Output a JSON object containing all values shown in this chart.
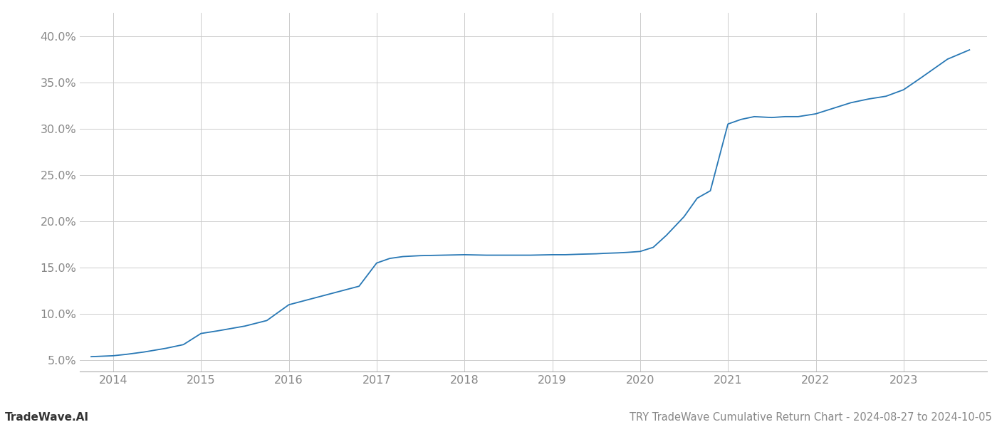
{
  "x_values": [
    2013.75,
    2014.0,
    2014.15,
    2014.35,
    2014.6,
    2014.8,
    2015.0,
    2015.2,
    2015.5,
    2015.75,
    2016.0,
    2016.2,
    2016.4,
    2016.6,
    2016.8,
    2017.0,
    2017.15,
    2017.3,
    2017.5,
    2017.75,
    2018.0,
    2018.25,
    2018.5,
    2018.75,
    2019.0,
    2019.15,
    2019.3,
    2019.5,
    2019.6,
    2019.75,
    2019.85,
    2020.0,
    2020.15,
    2020.3,
    2020.5,
    2020.65,
    2020.8,
    2021.0,
    2021.15,
    2021.3,
    2021.5,
    2021.65,
    2021.8,
    2022.0,
    2022.2,
    2022.4,
    2022.6,
    2022.8,
    2023.0,
    2023.2,
    2023.5,
    2023.75
  ],
  "y_values": [
    5.4,
    5.5,
    5.65,
    5.9,
    6.3,
    6.7,
    7.9,
    8.2,
    8.7,
    9.3,
    11.0,
    11.5,
    12.0,
    12.5,
    13.0,
    15.5,
    16.0,
    16.2,
    16.3,
    16.35,
    16.4,
    16.35,
    16.35,
    16.35,
    16.4,
    16.4,
    16.45,
    16.5,
    16.55,
    16.6,
    16.65,
    16.75,
    17.2,
    18.5,
    20.5,
    22.5,
    23.3,
    30.5,
    31.0,
    31.3,
    31.2,
    31.3,
    31.3,
    31.6,
    32.2,
    32.8,
    33.2,
    33.5,
    34.2,
    35.5,
    37.5,
    38.5
  ],
  "line_color": "#2878b5",
  "line_width": 1.3,
  "title": "TRY TradeWave Cumulative Return Chart - 2024-08-27 to 2024-10-05",
  "watermark": "TradeWave.AI",
  "xlim": [
    2013.62,
    2023.95
  ],
  "ylim": [
    3.8,
    42.5
  ],
  "ytick_values": [
    5.0,
    10.0,
    15.0,
    20.0,
    25.0,
    30.0,
    35.0,
    40.0
  ],
  "ytick_labels": [
    "5.0%",
    "10.0%",
    "15.0%",
    "20.0%",
    "25.0%",
    "30.0%",
    "35.0%",
    "40.0%"
  ],
  "xtick_values": [
    2014,
    2015,
    2016,
    2017,
    2018,
    2019,
    2020,
    2021,
    2022,
    2023
  ],
  "background_color": "#ffffff",
  "grid_color": "#cccccc",
  "tick_color": "#888888",
  "title_fontsize": 10.5,
  "watermark_fontsize": 11,
  "tick_fontsize": 11.5
}
